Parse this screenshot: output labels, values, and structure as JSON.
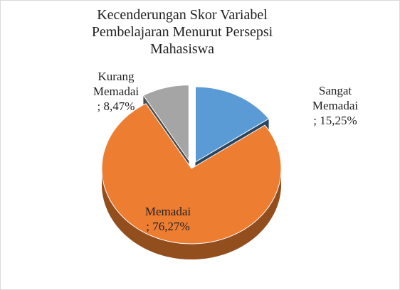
{
  "chart_data": {
    "type": "pie",
    "title": "Kecenderungan Skor Variabel Pembelajaran Menurut Persepsi Mahasiswa",
    "categories": [
      "Sangat Memadai",
      "Memadai",
      "Kurang Memadai"
    ],
    "values": [
      15.25,
      76.27,
      8.47
    ],
    "value_labels": [
      "; 15,25%",
      "; 76,27%",
      "; 8,47%"
    ],
    "colors": [
      "#5b9bd5",
      "#ed7d31",
      "#a5a5a5"
    ]
  }
}
